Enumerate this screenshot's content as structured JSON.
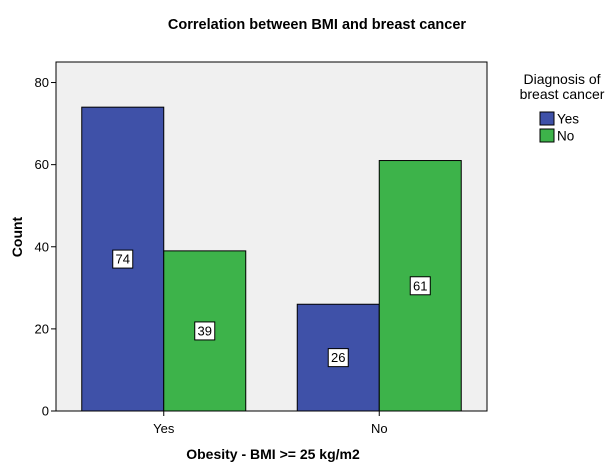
{
  "chart_data": {
    "type": "bar",
    "title": "Correlation between BMI and breast cancer",
    "xlabel": "Obesity - BMI >= 25 kg/m2",
    "ylabel": "Count",
    "categories": [
      "Yes",
      "No"
    ],
    "series": [
      {
        "name": "Yes",
        "values": [
          74,
          26
        ],
        "color": "#3f51a8"
      },
      {
        "name": "No",
        "values": [
          39,
          61
        ],
        "color": "#3db34a"
      }
    ],
    "ylim": [
      0,
      85
    ],
    "yticks": [
      0,
      20,
      40,
      60,
      80
    ],
    "grid": false,
    "data_labels": true,
    "legend": {
      "title_lines": [
        "Diagnosis of",
        "breast cancer"
      ],
      "position": "right"
    },
    "plot_background": "#f0f0f0"
  }
}
